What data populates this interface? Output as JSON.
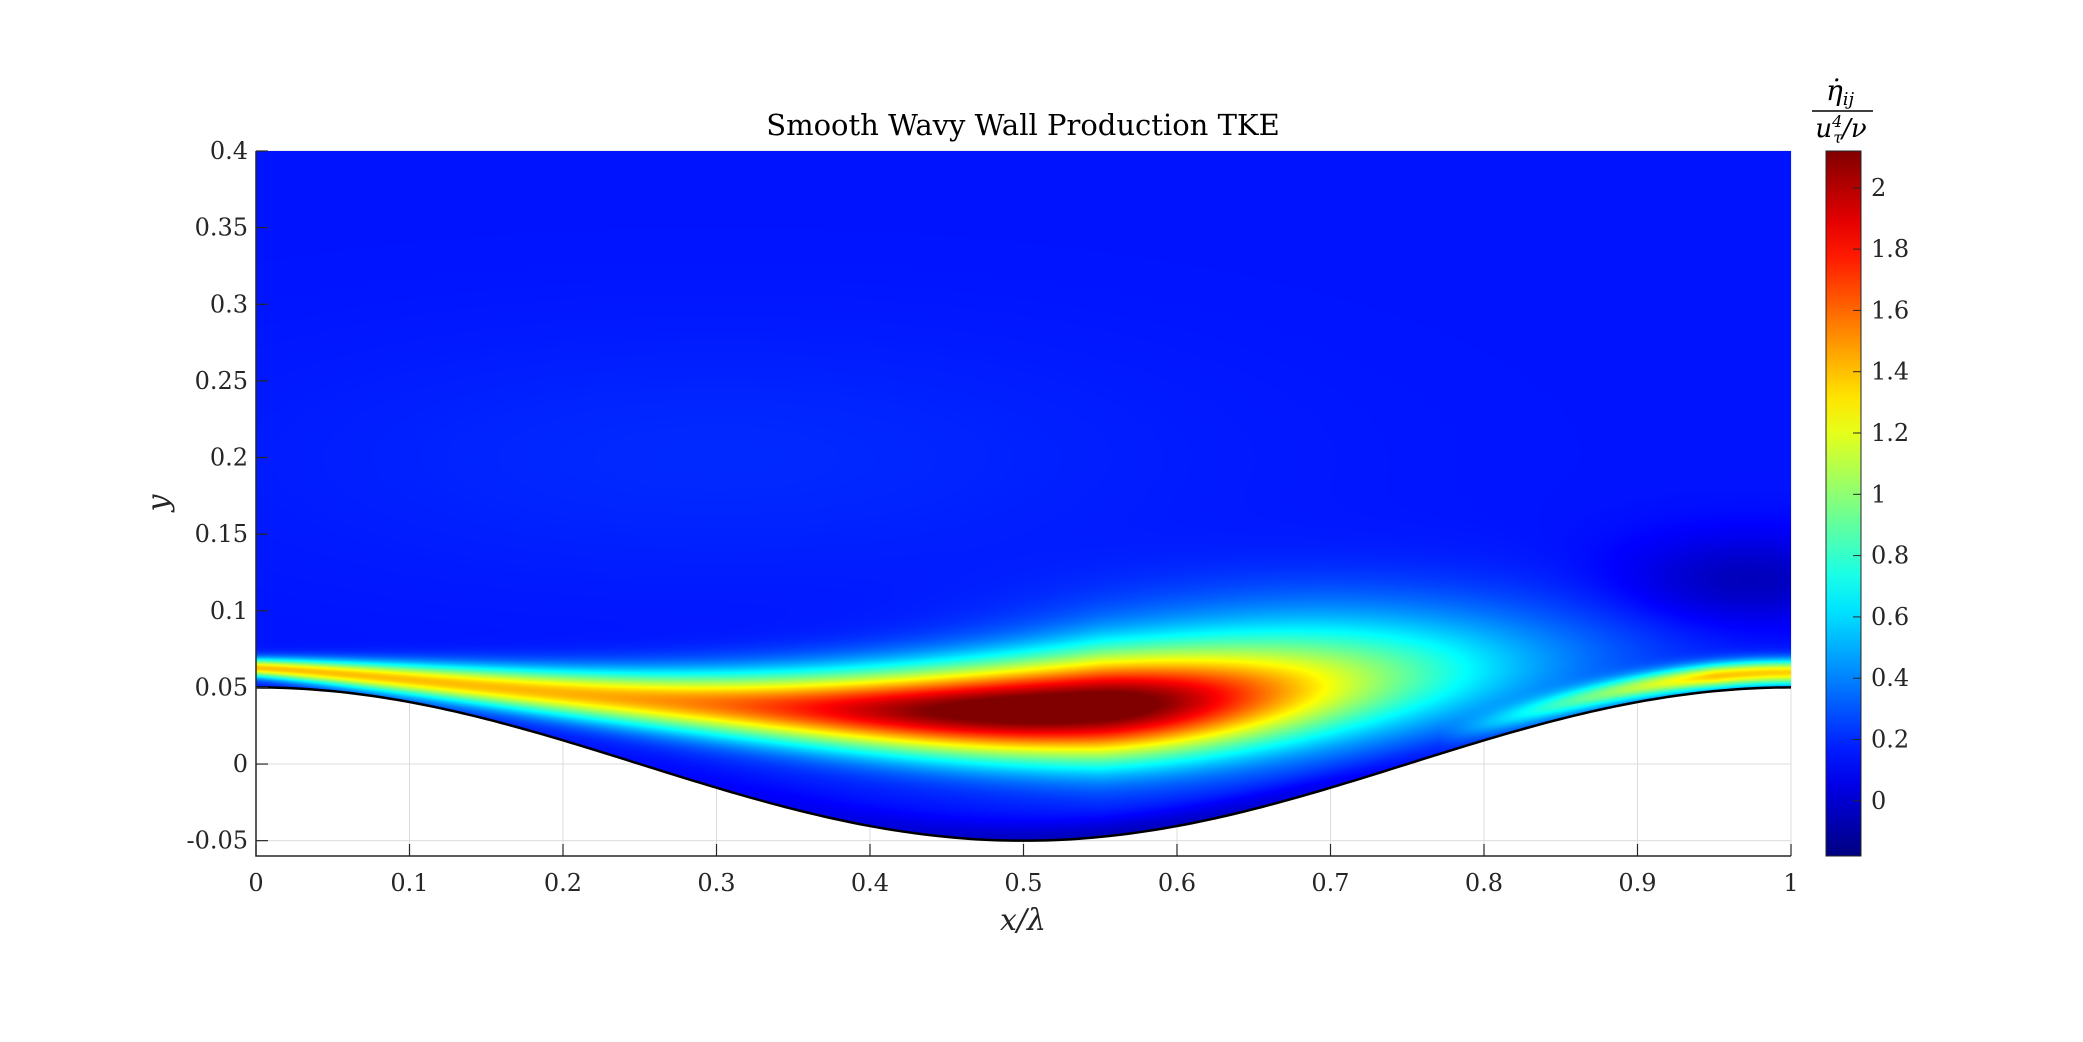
{
  "chart_data": {
    "type": "heatmap",
    "title": "Smooth Wavy Wall Production TKE",
    "xlabel": "x/λ",
    "ylabel": "y",
    "xlim": [
      0,
      1
    ],
    "ylim": [
      -0.06,
      0.4
    ],
    "xticks": [
      0,
      0.1,
      0.2,
      0.3,
      0.4,
      0.5,
      0.6,
      0.7,
      0.8,
      0.9,
      1
    ],
    "xtick_labels": [
      "0",
      "0.1",
      "0.2",
      "0.3",
      "0.4",
      "0.5",
      "0.6",
      "0.7",
      "0.8",
      "0.9",
      "1"
    ],
    "yticks": [
      -0.05,
      0,
      0.05,
      0.1,
      0.15,
      0.2,
      0.25,
      0.3,
      0.35,
      0.4
    ],
    "ytick_labels": [
      "-0.05",
      "0",
      "0.05",
      "0.1",
      "0.15",
      "0.2",
      "0.25",
      "0.3",
      "0.35",
      "0.4"
    ],
    "grid": true,
    "colormap": "jet",
    "wall": {
      "shape": "cosine",
      "amplitude": 0.05,
      "crest_x": [
        0,
        1
      ],
      "trough_x": 0.5
    },
    "colorbar": {
      "label_numerator": "η̇ij",
      "label_num_base": "η̇",
      "label_num_sub": "ij",
      "label_den_base": "u",
      "label_den_sup": "4",
      "label_den_sub": "τ",
      "label_den_tail": "/ν",
      "clim": [
        -0.18,
        2.12
      ],
      "ticks": [
        0,
        0.2,
        0.4,
        0.6,
        0.8,
        1,
        1.2,
        1.4,
        1.6,
        1.8,
        2
      ],
      "tick_labels": [
        "0",
        "0.2",
        "0.4",
        "0.6",
        "0.8",
        "1",
        "1.2",
        "1.4",
        "1.6",
        "1.8",
        "2"
      ],
      "location": "right"
    },
    "field_features": {
      "background_value": 0.15,
      "peak": {
        "x": 0.51,
        "y": 0.04,
        "value": 2.1
      },
      "shear_layer_start": {
        "x": 0.0,
        "y": 0.063
      },
      "shear_layer_end": {
        "x": 0.78,
        "y": 0.06
      },
      "reattachment_layer": {
        "x_start": 0.82,
        "y_at_end": 0.062,
        "value": 1.2
      },
      "outer_low_region": {
        "x": 0.97,
        "y": 0.12,
        "value": -0.15
      }
    }
  }
}
